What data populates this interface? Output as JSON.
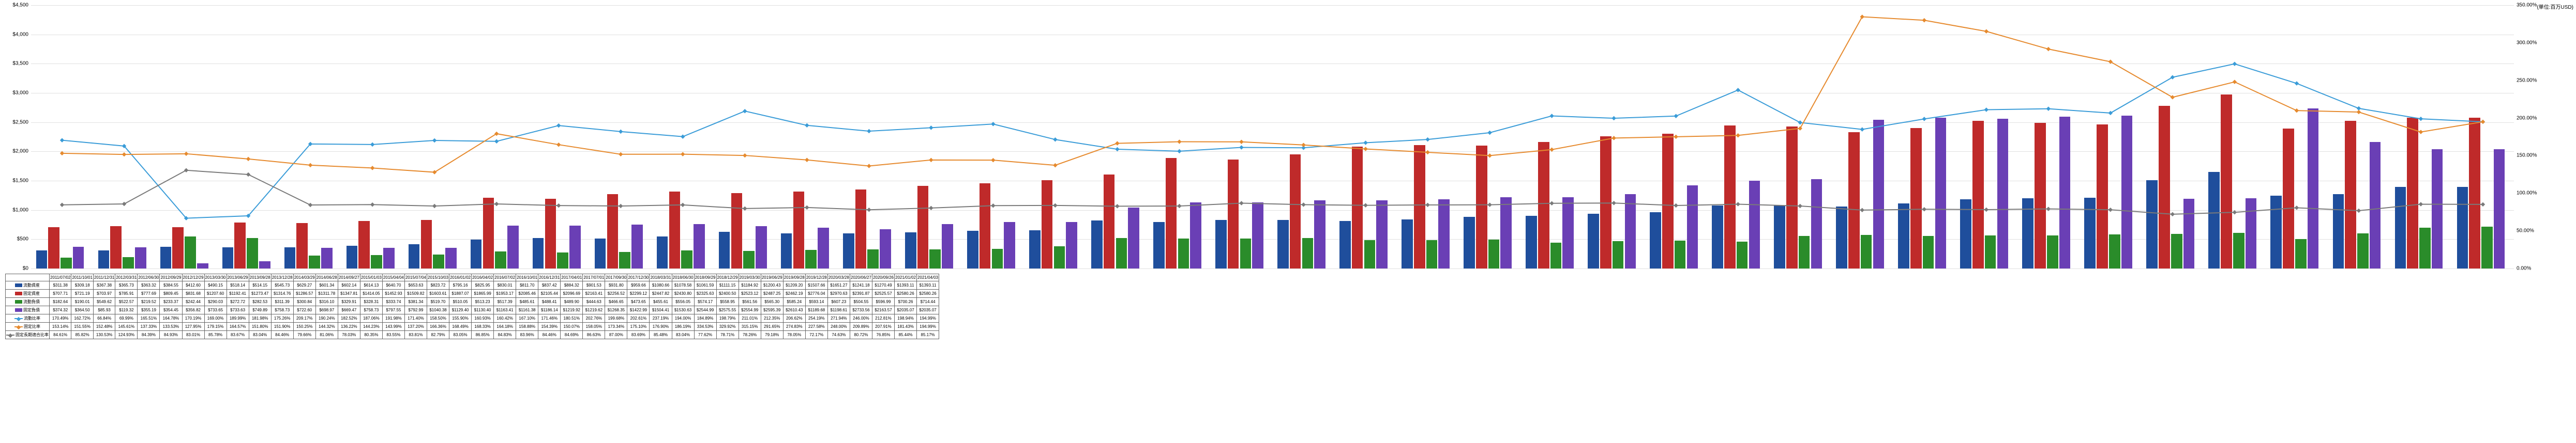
{
  "chart": {
    "type": "combo-bar-line",
    "background_color": "#ffffff",
    "grid_color": "#e0e0e0",
    "y_left": {
      "min": 0,
      "max": 4500,
      "step": 500,
      "format_prefix": "$",
      "title": "(単位:百万USD)"
    },
    "y_right": {
      "min": 0,
      "max": 350,
      "step": 50,
      "format_suffix": "%"
    },
    "periods": [
      "2011/07/02",
      "2011/10/01",
      "2011/12/31",
      "2012/03/31",
      "2012/06/30",
      "2012/09/29",
      "2012/12/29",
      "2013/03/30",
      "2013/06/29",
      "2013/09/28",
      "2013/12/28",
      "2014/03/29",
      "2014/06/28",
      "2014/09/27",
      "2015/01/03",
      "2015/04/04",
      "2015/07/04",
      "2015/10/03",
      "2016/01/02",
      "2016/04/02",
      "2016/07/02",
      "2016/10/01",
      "2016/12/31",
      "2017/04/01",
      "2017/07/01",
      "2017/09/30",
      "2017/12/30",
      "2018/03/31",
      "2018/06/30",
      "2018/09/29",
      "2018/12/29",
      "2019/03/30",
      "2019/06/29",
      "2019/09/28",
      "2019/12/28",
      "2020/03/28",
      "2020/06/27",
      "2020/09/26",
      "2021/01/02",
      "2021/04/03"
    ],
    "bar_series": [
      {
        "name": "流動資産",
        "color": "#1f4e9c",
        "values": [
          311.38,
          309.18,
          367.38,
          365.73,
          363.32,
          384.55,
          412.6,
          490.15,
          518.14,
          514.15,
          545.73,
          629.27,
          601.34,
          602.14,
          614.13,
          640.7,
          653.63,
          823.72,
          795.16,
          825.95,
          830.01,
          811.7,
          837.42,
          884.32,
          901.53,
          931.8,
          959.66,
          1080.66,
          1078.58,
          1061.59,
          1111.15,
          1184.92,
          1200.43,
          1209.2,
          1507.66,
          1651.27,
          1241.18,
          1270.49,
          1393.11,
          1393.11
        ]
      },
      {
        "name": "固定資産",
        "color": "#bf2a2a",
        "values": [
          707.71,
          721.19,
          703.97,
          785.91,
          777.69,
          809.45,
          831.68,
          1207.6,
          1192.41,
          1273.47,
          1314.76,
          1286.57,
          1311.78,
          1347.81,
          1414.05,
          1452.93,
          1509.82,
          1603.61,
          1887.07,
          1865.99,
          1953.17,
          2085.46,
          2105.44,
          2096.69,
          2163.41,
          2256.52,
          2299.12,
          2447.82,
          2430.8,
          2325.63,
          2400.5,
          2523.12,
          2487.25,
          2462.19,
          2776.04,
          2970.63,
          2391.87,
          2525.57,
          2580.26,
          2580.26
        ]
      },
      {
        "name": "流動負債",
        "color": "#2a8c2a",
        "values": [
          182.64,
          190.01,
          549.62,
          522.57,
          219.52,
          233.37,
          242.44,
          290.03,
          272.72,
          282.53,
          311.39,
          300.84,
          316.1,
          329.91,
          328.31,
          333.74,
          381.34,
          519.7,
          510.05,
          513.23,
          517.39,
          485.61,
          488.41,
          489.9,
          444.63,
          466.65,
          473.65,
          455.61,
          556.05,
          574.17,
          558.95,
          561.56,
          565.3,
          585.24,
          593.14,
          607.23,
          504.55,
          596.99,
          700.26,
          714.44
        ]
      },
      {
        "name": "固定負債",
        "color": "#6a3fb5",
        "values": [
          374.32,
          364.5,
          85.93,
          119.32,
          355.19,
          354.45,
          356.82,
          733.65,
          733.63,
          749.89,
          758.73,
          722.6,
          698.97,
          669.47,
          758.73,
          797.55,
          792.99,
          1040.38,
          1129.4,
          1130.4,
          1163.41,
          1161.38,
          1186.14,
          1219.92,
          1219.62,
          1268.35,
          1422.99,
          1504.41,
          1530.63,
          2544.99,
          2575.55,
          2554.99,
          2595.39,
          2610.43,
          1189.68,
          1198.61,
          2733.56,
          2163.57,
          2035.07,
          2035.07
        ]
      }
    ],
    "line_series": [
      {
        "name": "流動比率",
        "color": "#3a9cd8",
        "values": [
          170.49,
          162.72,
          66.84,
          69.99,
          165.51,
          164.78,
          170.19,
          169.0,
          189.99,
          181.98,
          175.26,
          209.17,
          190.24,
          182.52,
          187.06,
          191.98,
          171.4,
          158.5,
          155.9,
          160.93,
          160.42,
          167.1,
          171.46,
          180.51,
          202.76,
          199.68,
          202.61,
          237.19,
          194.0,
          184.89,
          198.79,
          211.01,
          212.35,
          206.62,
          254.19,
          271.94,
          246.0,
          212.81,
          198.94,
          194.99
        ]
      },
      {
        "name": "固定比率",
        "color": "#e68a2e",
        "values": [
          153.14,
          151.55,
          152.48,
          145.61,
          137.33,
          133.53,
          127.95,
          179.15,
          164.57,
          151.8,
          151.9,
          150.25,
          144.32,
          136.22,
          144.23,
          143.99,
          137.2,
          166.36,
          168.49,
          168.33,
          164.18,
          158.88,
          154.39,
          150.07,
          158.05,
          173.34,
          175.1,
          176.9,
          186.19,
          334.53,
          329.92,
          315.15,
          291.65,
          274.83,
          227.58,
          248.0,
          209.89,
          207.91,
          181.43,
          194.99
        ]
      },
      {
        "name": "固定長期適合比率",
        "color": "#7a7a7a",
        "values": [
          84.61,
          85.82,
          130.53,
          124.93,
          84.39,
          84.93,
          83.01,
          85.78,
          83.67,
          83.04,
          84.46,
          79.66,
          81.06,
          78.03,
          80.35,
          83.55,
          83.81,
          82.79,
          83.05,
          86.85,
          84.83,
          83.96,
          84.46,
          84.69,
          86.63,
          87.0,
          83.69,
          85.48,
          83.04,
          77.62,
          78.71,
          78.26,
          79.18,
          78.05,
          72.17,
          74.63,
          80.72,
          76.85,
          85.44,
          85.17
        ]
      }
    ],
    "legend": {
      "bars": [
        "流動資産",
        "固定資産",
        "流動負債",
        "固定負債"
      ],
      "lines": [
        "流動比率",
        "固定比率",
        "固定長期適合比率"
      ]
    }
  }
}
